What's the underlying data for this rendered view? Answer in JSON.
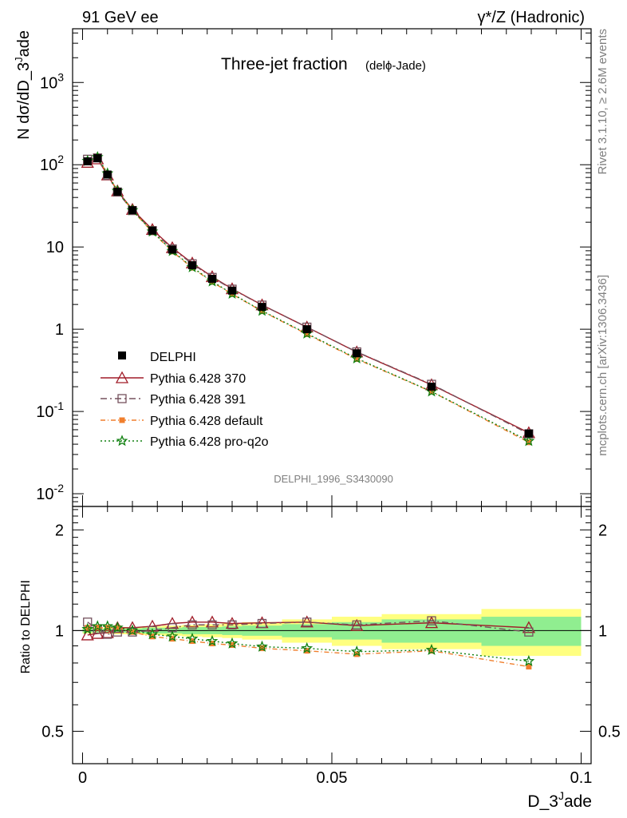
{
  "header": {
    "left": "91 GeV ee",
    "right": "γ*/Z (Hadronic)"
  },
  "side_text": {
    "rivet": "Rivet 3.1.10, ≥ 2.6M events",
    "mcplots": "mcplots.cern.ch [arXiv:1306.3436]"
  },
  "chart_data": {
    "type": "line",
    "title": "Three-jet fraction",
    "title_sub": "(delϕ-Jade)",
    "analysis_id": "DELPHI_1996_S3430090",
    "xlabel": "D_3^Jade",
    "ylabel_main": "N dσ/dD_3^Jade",
    "ylabel_ratio": "Ratio to DELPHI",
    "x_range": [
      -0.002,
      0.102
    ],
    "y_range_main": [
      0.007,
      4500
    ],
    "y_scale_main": "log",
    "y_range_ratio": [
      0.4,
      2.35
    ],
    "y_scale_ratio": "log",
    "x_ticks": [
      0,
      0.05,
      0.1
    ],
    "x_tick_labels": [
      "0",
      "0.05",
      "0.1"
    ],
    "y_ticks_main": [
      0.01,
      0.1,
      1,
      10,
      100,
      1000
    ],
    "y_tick_labels_main": [
      "10^-2",
      "10^-1",
      "1",
      "10",
      "10^2",
      "10^3"
    ],
    "y_ticks_ratio": [
      0.5,
      1,
      2
    ],
    "y_tick_labels_ratio": [
      "0.5",
      "1",
      "2"
    ],
    "legend_position": "lower-left",
    "x": [
      0.001,
      0.003,
      0.005,
      0.007,
      0.01,
      0.014,
      0.018,
      0.022,
      0.026,
      0.03,
      0.036,
      0.045,
      0.055,
      0.07,
      0.0895
    ],
    "data": {
      "name": "DELPHI",
      "values": [
        110,
        120,
        76,
        47,
        28,
        15.8,
        9.3,
        6.0,
        4.1,
        2.95,
        1.87,
        1.0,
        0.51,
        0.2,
        0.054
      ]
    },
    "band_edges": [
      0.0,
      0.002,
      0.004,
      0.006,
      0.008,
      0.012,
      0.016,
      0.02,
      0.024,
      0.028,
      0.032,
      0.04,
      0.05,
      0.06,
      0.08,
      0.1
    ],
    "band_green": [
      0.012,
      0.012,
      0.012,
      0.015,
      0.015,
      0.02,
      0.02,
      0.025,
      0.025,
      0.03,
      0.035,
      0.045,
      0.06,
      0.08,
      0.1
    ],
    "band_yellow": [
      0.02,
      0.02,
      0.02,
      0.025,
      0.025,
      0.03,
      0.035,
      0.04,
      0.045,
      0.05,
      0.06,
      0.08,
      0.1,
      0.12,
      0.16
    ],
    "series": [
      {
        "name": "Pythia 6.428 370",
        "color": "#a01c28",
        "marker": "triangle-open",
        "dash": "",
        "ratio": [
          0.97,
          0.98,
          0.985,
          1.02,
          1.02,
          1.03,
          1.05,
          1.06,
          1.06,
          1.05,
          1.055,
          1.06,
          1.035,
          1.055,
          1.02
        ]
      },
      {
        "name": "Pythia 6.428 391",
        "color": "#75525e",
        "marker": "square-open",
        "dash": "8,4,2,4",
        "ratio": [
          1.06,
          1.01,
          0.975,
          0.99,
          0.99,
          1.0,
          1.02,
          1.04,
          1.04,
          1.04,
          1.05,
          1.06,
          1.04,
          1.07,
          0.99
        ]
      },
      {
        "name": "Pythia 6.428 default",
        "color": "#f07f2d",
        "marker": "square-filled",
        "dash": "6,3,1,3",
        "ratio": [
          1.02,
          1.02,
          1.02,
          1.02,
          0.99,
          0.96,
          0.945,
          0.93,
          0.915,
          0.905,
          0.885,
          0.87,
          0.85,
          0.87,
          0.78
        ]
      },
      {
        "name": "Pythia 6.428 pro-q2o",
        "color": "#108010",
        "marker": "star-open",
        "dash": "2,3",
        "ratio": [
          1.01,
          1.03,
          1.03,
          1.02,
          1.0,
          0.975,
          0.96,
          0.945,
          0.93,
          0.915,
          0.895,
          0.885,
          0.865,
          0.875,
          0.81
        ]
      }
    ]
  }
}
